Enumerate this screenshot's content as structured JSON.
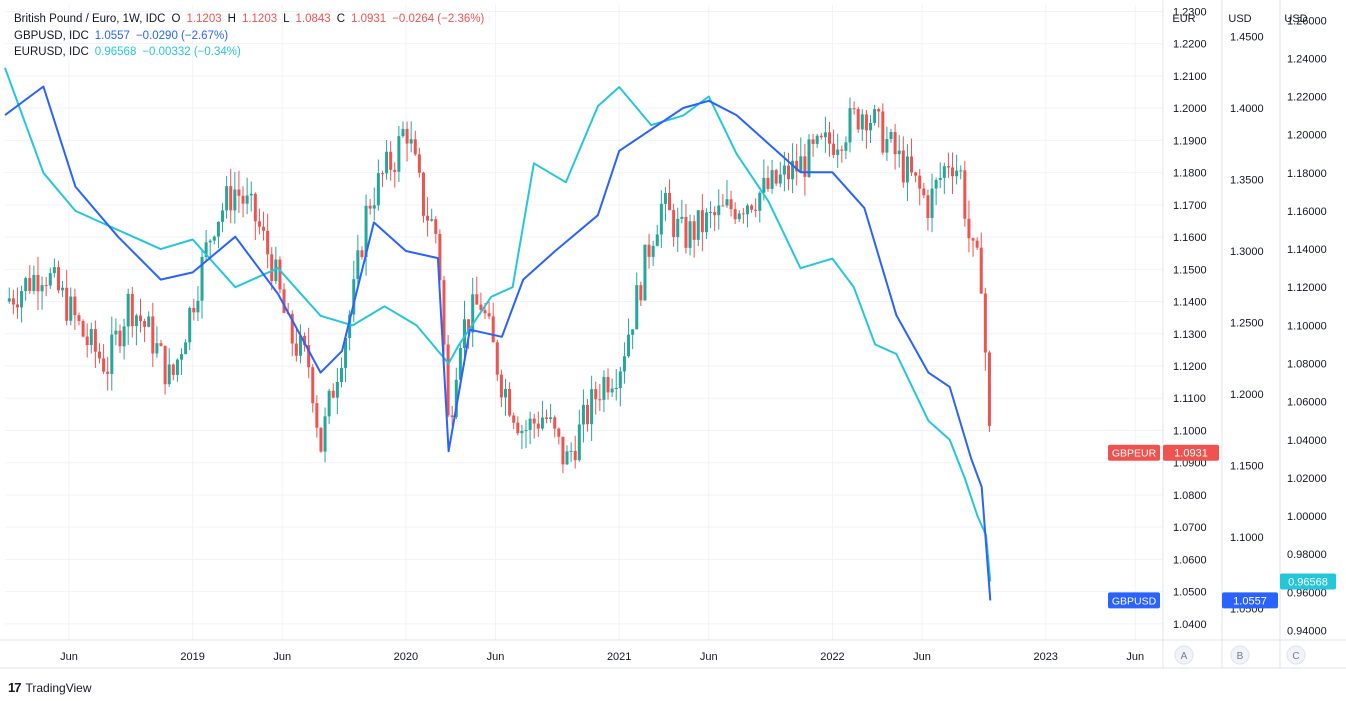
{
  "legend": {
    "main": {
      "name": "British Pound / Euro, 1W, IDC",
      "o_label": "O",
      "o": "1.1203",
      "h_label": "H",
      "h": "1.1203",
      "l_label": "L",
      "l": "1.0843",
      "c_label": "C",
      "c": "1.0931",
      "change": "−0.0264 (−2.36%)"
    },
    "gbpusd": {
      "name": "GBPUSD, IDC",
      "value": "1.0557",
      "change": "−0.0290 (−2.67%)"
    },
    "eurusd": {
      "name": "EURUSD, IDC",
      "value": "0.96568",
      "change": "−0.00332 (−0.34%)"
    }
  },
  "colors": {
    "up": "#26a69a",
    "down": "#ef5350",
    "gbpusd": "#2962ff",
    "eurusd": "#26c6da",
    "grid": "#f0f3fa",
    "text": "#131722",
    "axis": "#e0e3eb"
  },
  "axes": {
    "headers": [
      "EUR",
      "USD",
      "USD"
    ],
    "letters": [
      "A",
      "B",
      "C"
    ],
    "eur_ticks": [
      "1.2300",
      "1.2200",
      "1.2100",
      "1.2000",
      "1.1900",
      "1.1800",
      "1.1700",
      "1.1600",
      "1.1500",
      "1.1400",
      "1.1300",
      "1.1200",
      "1.1100",
      "1.1000",
      "1.0900",
      "1.0800",
      "1.0700",
      "1.0600",
      "1.0500",
      "1.0400"
    ],
    "gbpusd_ticks": [
      "1.4500",
      "1.4000",
      "1.3500",
      "1.3000",
      "1.2500",
      "1.2000",
      "1.1500",
      "1.1000",
      "1.0500"
    ],
    "eurusd_ticks": [
      "1.26000",
      "1.24000",
      "1.22000",
      "1.20000",
      "1.18000",
      "1.16000",
      "1.14000",
      "1.12000",
      "1.10000",
      "1.08000",
      "1.06000",
      "1.04000",
      "1.02000",
      "1.00000",
      "0.98000",
      "0.96000",
      "0.94000"
    ],
    "time_labels": [
      {
        "label": "Jun",
        "t": 2018.42
      },
      {
        "label": "2019",
        "t": 2019.0
      },
      {
        "label": "Jun",
        "t": 2019.42
      },
      {
        "label": "2020",
        "t": 2020.0
      },
      {
        "label": "Jun",
        "t": 2020.42
      },
      {
        "label": "2021",
        "t": 2021.0
      },
      {
        "label": "Jun",
        "t": 2021.42
      },
      {
        "label": "2022",
        "t": 2022.0
      },
      {
        "label": "Jun",
        "t": 2022.42
      },
      {
        "label": "2023",
        "t": 2023.0
      },
      {
        "label": "Jun",
        "t": 2023.42
      }
    ]
  },
  "badges": {
    "gbpeur_label": "GBPEUR",
    "gbpeur_value": "1.0931",
    "gbpusd_label": "GBPUSD",
    "gbpusd_value": "1.0557",
    "eurusd_value": "0.96568"
  },
  "footer": {
    "logo": "17",
    "text": "TradingView"
  },
  "chart_data": {
    "type": "line",
    "title": "British Pound / Euro, 1W, IDC",
    "x_range": [
      2018.12,
      2023.55
    ],
    "ylim_eur": [
      1.035,
      1.232
    ],
    "ylim_gbpusd": [
      1.028,
      1.472
    ],
    "ylim_eurusd": [
      0.935,
      1.268
    ],
    "series": [
      {
        "name": "GBPEUR",
        "style": "candles",
        "x": [
          2018.12,
          2018.3,
          2018.42,
          2018.5,
          2018.6,
          2018.7,
          2018.8,
          2018.9,
          2019.0,
          2019.1,
          2019.2,
          2019.3,
          2019.38,
          2019.45,
          2019.55,
          2019.6,
          2019.68,
          2019.75,
          2019.82,
          2019.9,
          2019.95,
          2020.0,
          2020.08,
          2020.15,
          2020.2,
          2020.25,
          2020.35,
          2020.45,
          2020.55,
          2020.65,
          2020.75,
          2020.85,
          2020.92,
          2021.0,
          2021.08,
          2021.15,
          2021.2,
          2021.3,
          2021.42,
          2021.55,
          2021.7,
          2021.8,
          2021.9,
          2022.0,
          2022.08,
          2022.15,
          2022.25,
          2022.35,
          2022.45,
          2022.55,
          2022.6,
          2022.65,
          2022.7,
          2022.72,
          2022.74
        ],
        "values": [
          1.14,
          1.15,
          1.138,
          1.128,
          1.12,
          1.14,
          1.13,
          1.115,
          1.14,
          1.165,
          1.175,
          1.165,
          1.15,
          1.13,
          1.12,
          1.095,
          1.12,
          1.14,
          1.17,
          1.18,
          1.185,
          1.195,
          1.17,
          1.16,
          1.1,
          1.13,
          1.14,
          1.115,
          1.1,
          1.105,
          1.09,
          1.105,
          1.115,
          1.12,
          1.14,
          1.16,
          1.17,
          1.16,
          1.165,
          1.17,
          1.175,
          1.18,
          1.185,
          1.19,
          1.195,
          1.2,
          1.19,
          1.18,
          1.17,
          1.185,
          1.18,
          1.155,
          1.148,
          1.1203,
          1.0931
        ]
      },
      {
        "name": "GBPUSD",
        "x": [
          2018.12,
          2018.3,
          2018.45,
          2018.65,
          2018.85,
          2019.0,
          2019.2,
          2019.4,
          2019.6,
          2019.7,
          2019.85,
          2020.0,
          2020.15,
          2020.2,
          2020.3,
          2020.45,
          2020.55,
          2020.7,
          2020.9,
          2021.0,
          2021.15,
          2021.3,
          2021.42,
          2021.55,
          2021.7,
          2021.85,
          2022.0,
          2022.15,
          2022.3,
          2022.45,
          2022.55,
          2022.65,
          2022.7,
          2022.74
        ],
        "values": [
          1.395,
          1.415,
          1.345,
          1.31,
          1.28,
          1.285,
          1.31,
          1.27,
          1.215,
          1.23,
          1.32,
          1.3,
          1.295,
          1.16,
          1.245,
          1.24,
          1.28,
          1.3,
          1.325,
          1.37,
          1.385,
          1.4,
          1.405,
          1.395,
          1.375,
          1.355,
          1.355,
          1.33,
          1.255,
          1.215,
          1.205,
          1.155,
          1.135,
          1.0557
        ]
      },
      {
        "name": "EURUSD",
        "x": [
          2018.12,
          2018.3,
          2018.45,
          2018.65,
          2018.85,
          2019.0,
          2019.2,
          2019.4,
          2019.6,
          2019.75,
          2019.9,
          2020.05,
          2020.2,
          2020.25,
          2020.4,
          2020.5,
          2020.6,
          2020.75,
          2020.9,
          2021.0,
          2021.15,
          2021.3,
          2021.42,
          2021.55,
          2021.7,
          2021.85,
          2022.0,
          2022.1,
          2022.2,
          2022.3,
          2022.45,
          2022.55,
          2022.62,
          2022.68,
          2022.72,
          2022.74
        ],
        "values": [
          1.235,
          1.18,
          1.16,
          1.15,
          1.14,
          1.145,
          1.12,
          1.13,
          1.105,
          1.1,
          1.11,
          1.1,
          1.08,
          1.09,
          1.115,
          1.12,
          1.185,
          1.175,
          1.215,
          1.225,
          1.205,
          1.21,
          1.22,
          1.19,
          1.165,
          1.13,
          1.135,
          1.12,
          1.09,
          1.085,
          1.05,
          1.04,
          1.02,
          1.0,
          0.99,
          0.96568
        ]
      }
    ]
  }
}
